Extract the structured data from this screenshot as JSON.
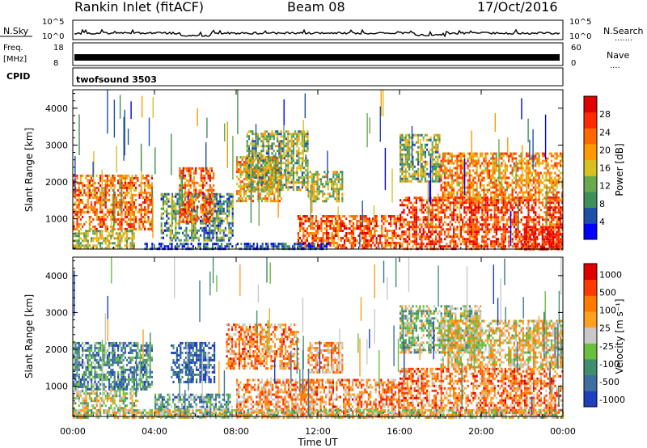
{
  "header": {
    "station": "Rankin Inlet (fitACF)",
    "beam": "Beam 08",
    "date": "17/Oct/2016"
  },
  "strips": {
    "nsky": {
      "label": "N.Sky",
      "ticks": [
        "10^5",
        "10^0"
      ],
      "right_ticks": [
        "10^5",
        "10^0"
      ],
      "right_label": "N.Search",
      "right_dots": "......."
    },
    "freq": {
      "label_line1": "Freq.",
      "label_line2": "[MHz]",
      "ticks": [
        "18",
        "8"
      ],
      "right_ticks": [
        "60",
        "0"
      ],
      "right_label": "Nave",
      "right_dots": "...."
    },
    "cpid": {
      "label": "CPID",
      "program": "twofsound 3503"
    }
  },
  "colors": {
    "power_scale": [
      "#0000ff",
      "#1e4fa8",
      "#3f8f5a",
      "#6aa84f",
      "#d8c020",
      "#ff9900",
      "#ff6a00",
      "#ff2a00",
      "#e00000"
    ],
    "velocity_scale": [
      "#1f3fbf",
      "#3f6fa0",
      "#3f8f6f",
      "#6abf3f",
      "#c8c8c8",
      "#ffa020",
      "#ff7a00",
      "#ff3a00",
      "#e00000"
    ]
  },
  "chart_data": [
    {
      "type": "heatmap",
      "title": "Power",
      "xlabel": "Time UT",
      "ylabel": "Slant Range [km]",
      "x_ticks": [
        "00:00",
        "04:00",
        "08:00",
        "12:00",
        "16:00",
        "20:00",
        "00:00"
      ],
      "y_ticks": [
        "1000",
        "2000",
        "3000",
        "4000"
      ],
      "colorbar_label": "Power [dB]",
      "colorbar_ticks": [
        "4",
        "8",
        "12",
        "16",
        "20",
        "24",
        "28"
      ],
      "xlim_hours": [
        0,
        24
      ],
      "ylim_km": [
        180,
        4500
      ],
      "regions": [
        {
          "t0": 0.0,
          "t1": 3.9,
          "r0": 700,
          "r1": 2200,
          "level": 0.72
        },
        {
          "t0": 0.0,
          "t1": 3.0,
          "r0": 200,
          "r1": 700,
          "level": 0.45
        },
        {
          "t0": 4.3,
          "t1": 7.8,
          "r0": 400,
          "r1": 1700,
          "level": 0.3
        },
        {
          "t0": 5.2,
          "t1": 6.9,
          "r0": 900,
          "r1": 2400,
          "level": 0.75
        },
        {
          "t0": 8.0,
          "t1": 10.2,
          "r0": 1500,
          "r1": 2700,
          "level": 0.6
        },
        {
          "t0": 8.5,
          "t1": 11.5,
          "r0": 1800,
          "r1": 3400,
          "level": 0.4
        },
        {
          "t0": 11.0,
          "t1": 16.0,
          "r0": 200,
          "r1": 1100,
          "level": 0.78
        },
        {
          "t0": 11.5,
          "t1": 13.2,
          "r0": 1500,
          "r1": 2300,
          "level": 0.45
        },
        {
          "t0": 16.0,
          "t1": 24.0,
          "r0": 200,
          "r1": 1600,
          "level": 0.82
        },
        {
          "t0": 16.0,
          "t1": 18.0,
          "r0": 2000,
          "r1": 3300,
          "level": 0.4
        },
        {
          "t0": 18.0,
          "t1": 24.0,
          "r0": 1500,
          "r1": 2800,
          "level": 0.65
        },
        {
          "t0": 22.0,
          "t1": 24.0,
          "r0": 200,
          "r1": 800,
          "level": 0.92
        },
        {
          "t0": 3.5,
          "t1": 12.5,
          "r0": 180,
          "r1": 350,
          "level": 0.15
        }
      ]
    },
    {
      "type": "heatmap",
      "title": "Velocity",
      "xlabel": "Time UT",
      "ylabel": "Slant Range [km]",
      "x_ticks": [
        "00:00",
        "04:00",
        "08:00",
        "12:00",
        "16:00",
        "20:00",
        "00:00"
      ],
      "y_ticks": [
        "1000",
        "2000",
        "3000",
        "4000"
      ],
      "colorbar_label": "Velocity [m s⁻¹]",
      "colorbar_ticks": [
        "1000",
        "500",
        "100",
        "25",
        "-25",
        "-100",
        "-500",
        "-1000"
      ],
      "xlim_hours": [
        0,
        24
      ],
      "ylim_km": [
        180,
        4500
      ],
      "regions": [
        {
          "t0": 0.0,
          "t1": 3.9,
          "r0": 900,
          "r1": 2200,
          "level": 0.25
        },
        {
          "t0": 0.0,
          "t1": 3.2,
          "r0": 200,
          "r1": 900,
          "level": 0.48
        },
        {
          "t0": 4.0,
          "t1": 7.8,
          "r0": 200,
          "r1": 800,
          "level": 0.3
        },
        {
          "t0": 4.8,
          "t1": 6.9,
          "r0": 1100,
          "r1": 2200,
          "level": 0.1
        },
        {
          "t0": 7.5,
          "t1": 11.0,
          "r0": 1500,
          "r1": 2700,
          "level": 0.7
        },
        {
          "t0": 8.0,
          "t1": 16.0,
          "r0": 200,
          "r1": 1200,
          "level": 0.68
        },
        {
          "t0": 11.5,
          "t1": 13.2,
          "r0": 1400,
          "r1": 2200,
          "level": 0.66
        },
        {
          "t0": 16.0,
          "t1": 24.0,
          "r0": 200,
          "r1": 1500,
          "level": 0.72
        },
        {
          "t0": 16.0,
          "t1": 20.0,
          "r0": 1900,
          "r1": 3200,
          "level": 0.42
        },
        {
          "t0": 18.0,
          "t1": 24.0,
          "r0": 1500,
          "r1": 2800,
          "level": 0.55
        },
        {
          "t0": 0.0,
          "t1": 24.0,
          "r0": 180,
          "r1": 380,
          "level": 0.5
        }
      ]
    }
  ]
}
